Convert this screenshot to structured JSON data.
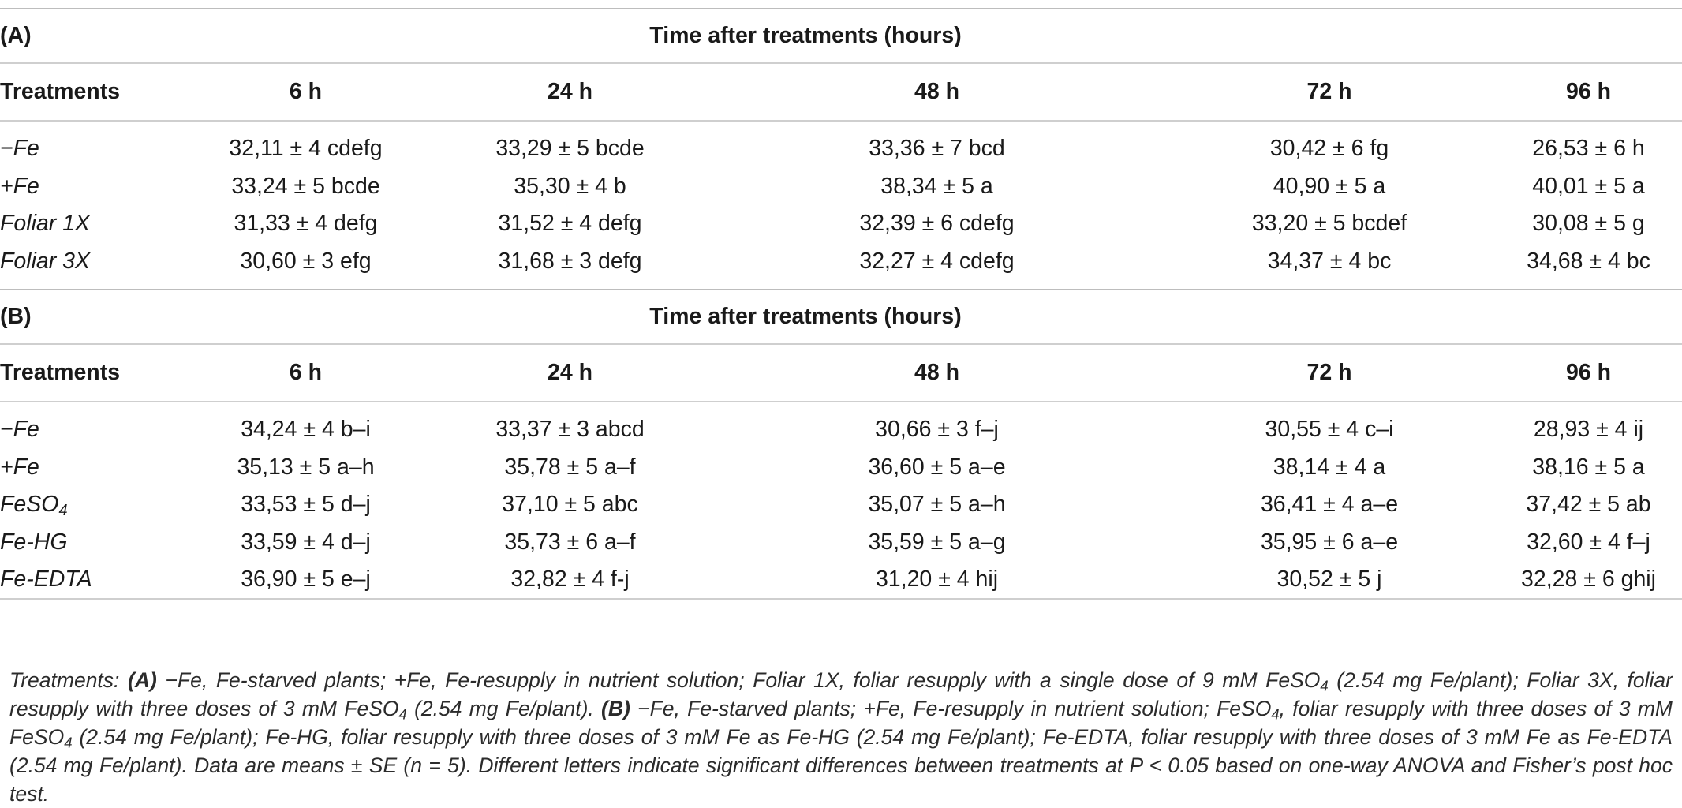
{
  "table_a": {
    "label": "(A)",
    "time_header": "Time after treatments (hours)",
    "columns": [
      "Treatments",
      "6 h",
      "24 h",
      "48 h",
      "72 h",
      "96 h"
    ],
    "rows": [
      {
        "treatment": "−Fe",
        "values": [
          "32,11 ± 4 cdefg",
          "33,29 ± 5 bcde",
          "33,36 ± 7 bcd",
          "30,42 ± 6 fg",
          "26,53 ± 6 h"
        ]
      },
      {
        "treatment": "+Fe",
        "values": [
          "33,24 ± 5 bcde",
          "35,30 ± 4 b",
          "38,34 ± 5 a",
          "40,90 ± 5 a",
          "40,01 ± 5 a"
        ]
      },
      {
        "treatment": "Foliar 1X",
        "values": [
          "31,33 ± 4 defg",
          "31,52 ± 4 defg",
          "32,39 ± 6 cdefg",
          "33,20 ± 5 bcdef",
          "30,08 ± 5 g"
        ]
      },
      {
        "treatment": "Foliar 3X",
        "values": [
          "30,60 ± 3 efg",
          "31,68 ± 3 defg",
          "32,27 ± 4 cdefg",
          "34,37 ± 4 bc",
          "34,68 ± 4 bc"
        ]
      }
    ]
  },
  "table_b": {
    "label": "(B)",
    "time_header": "Time after treatments (hours)",
    "columns": [
      "Treatments",
      "6 h",
      "24 h",
      "48 h",
      "72 h",
      "96 h"
    ],
    "rows": [
      {
        "treatment": "−Fe",
        "values": [
          "34,24 ± 4 b–i",
          "33,37 ± 3 abcd",
          "30,66 ± 3 f–j",
          "30,55 ± 4 c–i",
          "28,93 ± 4 ij"
        ]
      },
      {
        "treatment": "+Fe",
        "values": [
          "35,13 ± 5 a–h",
          "35,78 ± 5 a–f",
          "36,60 ± 5 a–e",
          "38,14 ± 4 a",
          "38,16 ± 5 a"
        ]
      },
      {
        "treatment_prefix": "FeSO",
        "treatment_sub": "4",
        "values": [
          "33,53 ± 5 d–j",
          "37,10 ± 5 abc",
          "35,07 ± 5 a–h",
          "36,41 ± 4 a–e",
          "37,42 ± 5 ab"
        ]
      },
      {
        "treatment": "Fe-HG",
        "values": [
          "33,59 ± 4 d–j",
          "35,73 ± 6 a–f",
          "35,59 ± 5 a–g",
          "35,95 ± 6 a–e",
          "32,60 ± 4 f–j"
        ]
      },
      {
        "treatment": "Fe-EDTA",
        "values": [
          "36,90 ± 5 e–j",
          "32,82 ± 4 f-j",
          "31,20 ± 4 hij",
          "30,52 ± 5 j",
          "32,28 ± 6 ghij"
        ]
      }
    ]
  },
  "footnote": {
    "p1": "Treatments: ",
    "a_label": "(A)",
    "p2": " −Fe, Fe-starved plants; +Fe, Fe-resupply in nutrient solution; Foliar 1X, foliar resupply with a single dose of 9 mM FeSO",
    "sub": "4",
    "p3": " (2.54 mg Fe/plant); Foliar 3X, foliar resupply with three doses of 3 mM FeSO",
    "p4": " (2.54 mg Fe/plant). ",
    "b_label": "(B)",
    "p5": " −Fe, Fe-starved plants; +Fe, Fe-resupply in nutrient solution; FeSO",
    "p6": ", foliar resupply with three doses of 3 mM FeSO",
    "p7": " (2.54 mg Fe/plant); Fe-HG, foliar resupply with three doses of 3 mM Fe as Fe-HG (2.54 mg Fe/plant); Fe-EDTA, foliar resupply with three doses of 3 mM Fe as Fe-EDTA (2.54 mg Fe/plant). Data are means ± SE (n = 5). Different letters indicate significant differences between treatments at P < 0.05 based on one-way ANOVA and Fisher’s post hoc test."
  }
}
